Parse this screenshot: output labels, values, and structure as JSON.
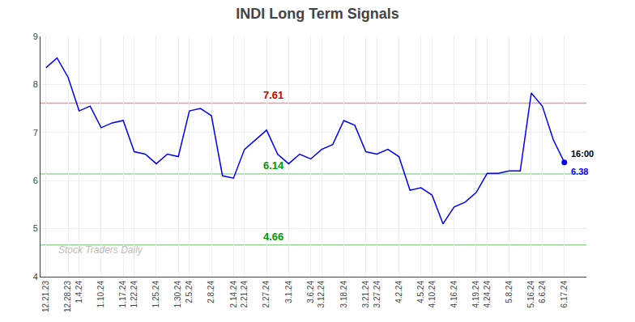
{
  "chart_data": {
    "type": "line",
    "title": "INDI Long Term Signals",
    "categories": [
      "12.21.23",
      null,
      "12.28.23",
      "1.4.24",
      null,
      "1.10.24",
      null,
      "1.17.24",
      "1.22.24",
      null,
      "1.25.24",
      null,
      "1.30.24",
      "2.5.24",
      null,
      "2.8.24",
      null,
      "2.14.24",
      "2.21.24",
      null,
      "2.27.24",
      null,
      "3.1.24",
      null,
      "3.6.24",
      "3.12.24",
      null,
      "3.18.24",
      null,
      "3.21.24",
      "3.27.24",
      null,
      "4.2.24",
      null,
      "4.5.24",
      "4.10.24",
      null,
      "4.16.24",
      null,
      "4.19.24",
      "4.24.24",
      null,
      "5.8.24",
      null,
      "5.16.24",
      "6.6.24",
      null,
      "6.17.24"
    ],
    "values": [
      8.35,
      8.55,
      8.15,
      7.45,
      7.55,
      7.1,
      7.2,
      7.25,
      6.6,
      6.55,
      6.35,
      6.55,
      6.5,
      7.45,
      7.5,
      7.35,
      6.1,
      6.05,
      6.65,
      6.85,
      7.05,
      6.55,
      6.35,
      6.55,
      6.45,
      6.65,
      6.75,
      7.25,
      7.15,
      6.6,
      6.55,
      6.65,
      6.5,
      5.8,
      5.85,
      5.7,
      5.1,
      5.45,
      5.55,
      5.75,
      6.15,
      6.15,
      6.2,
      6.2,
      7.82,
      7.55,
      6.85,
      6.38
    ],
    "color": "blue",
    "ylim": [
      4.0,
      9.0
    ],
    "yticks": [
      4,
      5,
      6,
      7,
      8,
      9
    ],
    "grid": true,
    "hlines": [
      {
        "value": 7.61,
        "label": "7.61",
        "color": "#cc0000"
      },
      {
        "value": 6.14,
        "label": "6.14",
        "color": "#009900"
      },
      {
        "value": 4.66,
        "label": "4.66",
        "color": "#009900"
      }
    ],
    "end_label": {
      "text": "16:00",
      "value_label": "6.38",
      "color": "blue"
    },
    "watermark": "Stock Traders Daily"
  }
}
